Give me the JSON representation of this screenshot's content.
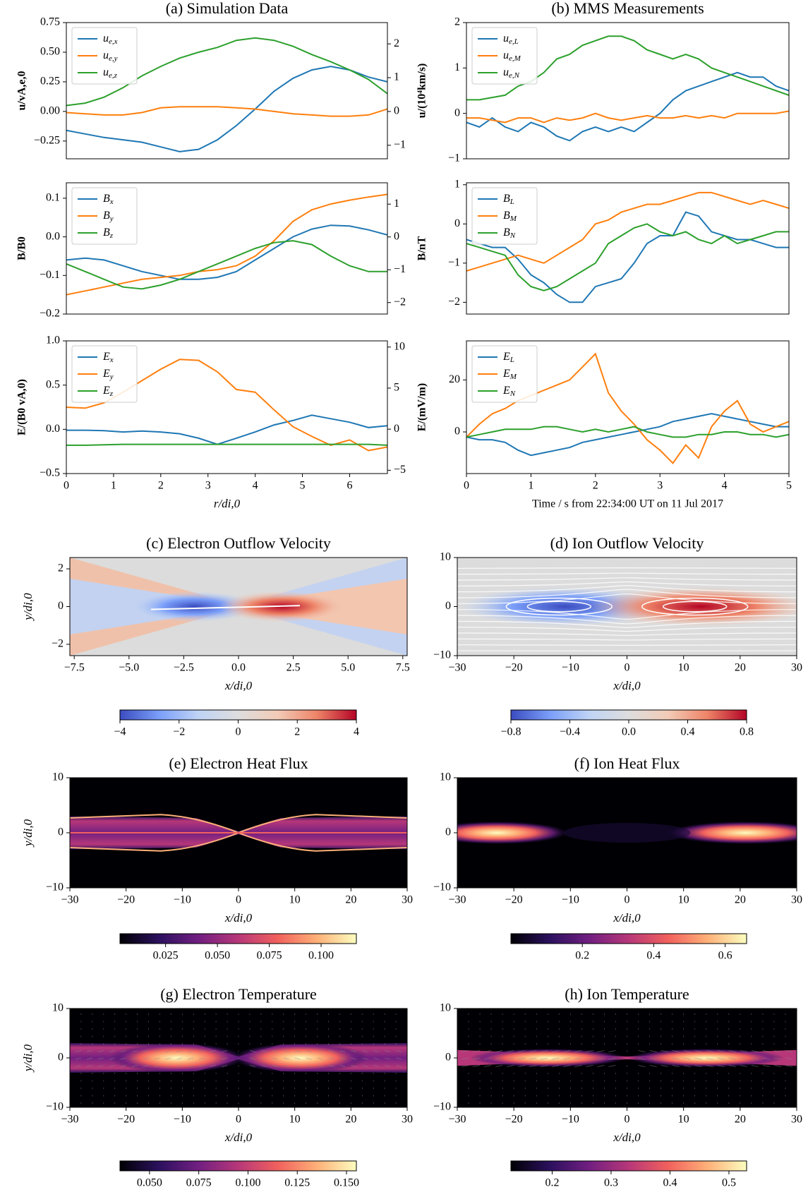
{
  "chart_data": [
    {
      "type": "line",
      "title": "(a) Simulation Data",
      "ylabel": "u/vA,e,0",
      "legend": "upper left",
      "x": [
        0,
        0.4,
        0.8,
        1.2,
        1.6,
        2,
        2.4,
        2.8,
        3.2,
        3.6,
        4,
        4.4,
        4.8,
        5.2,
        5.6,
        6,
        6.4,
        6.8
      ],
      "xlim": [
        0,
        6.8
      ],
      "ylim": [
        -0.4,
        0.75
      ],
      "yticks": [
        {
          "value": -0.25,
          "label": "−0.25"
        },
        {
          "value": 0,
          "label": "0.00"
        },
        0.25,
        {
          "value": 0.5,
          "label": "0.50"
        },
        0.75
      ],
      "y2lim": [
        -1.4,
        2.63
      ],
      "y2ticks": [
        {
          "value": -1,
          "label": "−1"
        },
        0,
        1,
        2
      ],
      "series": [
        {
          "name": "ue,x",
          "color": "#1f77b4",
          "values": [
            -0.16,
            -0.19,
            -0.22,
            -0.24,
            -0.26,
            -0.3,
            -0.34,
            -0.32,
            -0.24,
            -0.12,
            0.02,
            0.17,
            0.28,
            0.35,
            0.38,
            0.35,
            0.29,
            0.25
          ]
        },
        {
          "name": "ue,y",
          "color": "#ff7f0e",
          "values": [
            -0.01,
            -0.02,
            -0.03,
            -0.03,
            -0.01,
            0.03,
            0.04,
            0.04,
            0.04,
            0.03,
            0.02,
            0.0,
            -0.02,
            -0.03,
            -0.04,
            -0.04,
            -0.03,
            0.02
          ]
        },
        {
          "name": "ue,z",
          "color": "#2ca02c",
          "values": [
            0.05,
            0.07,
            0.12,
            0.2,
            0.3,
            0.38,
            0.45,
            0.5,
            0.54,
            0.6,
            0.62,
            0.6,
            0.55,
            0.48,
            0.42,
            0.35,
            0.27,
            0.15
          ]
        }
      ]
    },
    {
      "type": "line",
      "ylabel": "B/B0",
      "legend": "upper left",
      "x": [
        0,
        0.4,
        0.8,
        1.2,
        1.6,
        2,
        2.4,
        2.8,
        3.2,
        3.6,
        4,
        4.4,
        4.8,
        5.2,
        5.6,
        6,
        6.4,
        6.8
      ],
      "xlim": [
        0,
        6.8
      ],
      "ylim": [
        -0.2,
        0.14
      ],
      "yticks": [
        {
          "value": -0.2,
          "label": "−0.2"
        },
        {
          "value": -0.1,
          "label": "−0.1"
        },
        {
          "value": 0,
          "label": "0.0"
        },
        0.1
      ],
      "y2lim": [
        -2.35,
        1.65
      ],
      "y2ticks": [
        {
          "value": -2,
          "label": "−2"
        },
        {
          "value": -1,
          "label": "−1"
        },
        0,
        1
      ],
      "series": [
        {
          "name": "Bx",
          "color": "#1f77b4",
          "values": [
            -0.06,
            -0.055,
            -0.06,
            -0.075,
            -0.09,
            -0.1,
            -0.11,
            -0.11,
            -0.105,
            -0.09,
            -0.06,
            -0.03,
            0.0,
            0.02,
            0.03,
            0.028,
            0.018,
            0.005
          ]
        },
        {
          "name": "By",
          "color": "#ff7f0e",
          "values": [
            -0.15,
            -0.14,
            -0.13,
            -0.12,
            -0.11,
            -0.105,
            -0.1,
            -0.09,
            -0.085,
            -0.075,
            -0.05,
            -0.01,
            0.04,
            0.07,
            0.085,
            0.095,
            0.103,
            0.11
          ]
        },
        {
          "name": "Bz",
          "color": "#2ca02c",
          "values": [
            -0.07,
            -0.09,
            -0.11,
            -0.13,
            -0.135,
            -0.125,
            -0.11,
            -0.09,
            -0.07,
            -0.05,
            -0.03,
            -0.015,
            -0.01,
            -0.02,
            -0.05,
            -0.075,
            -0.09,
            -0.09
          ]
        }
      ]
    },
    {
      "type": "line",
      "ylabel": "E/(B0 vA,0)",
      "xlabel": "r/di,0",
      "legend": "upper left",
      "x": [
        0,
        0.4,
        0.8,
        1.2,
        1.6,
        2,
        2.4,
        2.8,
        3.2,
        3.6,
        4,
        4.4,
        4.8,
        5.2,
        5.6,
        6,
        6.4,
        6.8
      ],
      "xlim": [
        0,
        6.8
      ],
      "xticks": [
        0,
        1,
        2,
        3,
        4,
        5,
        6
      ],
      "ylim": [
        -0.5,
        1.0
      ],
      "yticks": [
        {
          "value": -0.5,
          "label": "−0.5"
        },
        {
          "value": 0,
          "label": "0.0"
        },
        0.5,
        {
          "value": 1,
          "label": "1.0"
        }
      ],
      "y2lim": [
        -5.4,
        10.75
      ],
      "y2ticks": [
        {
          "value": -5,
          "label": "−5"
        },
        0,
        5,
        10
      ],
      "series": [
        {
          "name": "Ex",
          "color": "#1f77b4",
          "values": [
            -0.01,
            -0.01,
            -0.015,
            -0.03,
            -0.02,
            -0.03,
            -0.05,
            -0.1,
            -0.17,
            -0.1,
            -0.03,
            0.05,
            0.1,
            0.16,
            0.12,
            0.08,
            0.02,
            0.04
          ]
        },
        {
          "name": "Ey",
          "color": "#ff7f0e",
          "values": [
            0.25,
            0.24,
            0.3,
            0.42,
            0.55,
            0.68,
            0.79,
            0.78,
            0.65,
            0.45,
            0.42,
            0.22,
            0.03,
            -0.08,
            -0.18,
            -0.12,
            -0.24,
            -0.2
          ]
        },
        {
          "name": "Ez",
          "color": "#2ca02c",
          "values": [
            -0.18,
            -0.18,
            -0.175,
            -0.17,
            -0.17,
            -0.17,
            -0.17,
            -0.17,
            -0.17,
            -0.17,
            -0.17,
            -0.17,
            -0.17,
            -0.17,
            -0.17,
            -0.17,
            -0.17,
            -0.18
          ]
        }
      ]
    },
    {
      "type": "line",
      "title": "(b) MMS Measurements",
      "ylabel": "u/(10⁴km/s)",
      "legend": "upper left",
      "x": [
        0,
        0.2,
        0.4,
        0.6,
        0.8,
        1,
        1.2,
        1.4,
        1.6,
        1.8,
        2,
        2.2,
        2.4,
        2.6,
        2.8,
        3,
        3.2,
        3.4,
        3.6,
        3.8,
        4,
        4.2,
        4.4,
        4.6,
        4.8,
        5
      ],
      "xlim": [
        0,
        5
      ],
      "ylim": [
        -1,
        2
      ],
      "yticks": [
        {
          "value": -1,
          "label": "−1"
        },
        0,
        1,
        2
      ],
      "series": [
        {
          "name": "ue,L",
          "color": "#1f77b4",
          "values": [
            -0.2,
            -0.3,
            -0.1,
            -0.3,
            -0.4,
            -0.2,
            -0.3,
            -0.5,
            -0.6,
            -0.4,
            -0.3,
            -0.4,
            -0.3,
            -0.4,
            -0.2,
            0.0,
            0.3,
            0.5,
            0.6,
            0.7,
            0.8,
            0.9,
            0.8,
            0.8,
            0.6,
            0.5
          ]
        },
        {
          "name": "ue,M",
          "color": "#ff7f0e",
          "values": [
            -0.1,
            -0.1,
            -0.15,
            -0.2,
            -0.1,
            -0.1,
            -0.2,
            -0.1,
            -0.15,
            -0.1,
            0.0,
            -0.1,
            -0.15,
            -0.1,
            -0.05,
            -0.1,
            -0.1,
            -0.05,
            -0.1,
            -0.05,
            -0.1,
            0.0,
            0.0,
            0.0,
            0.0,
            0.05
          ]
        },
        {
          "name": "ue,N",
          "color": "#2ca02c",
          "values": [
            0.3,
            0.3,
            0.35,
            0.4,
            0.6,
            0.7,
            0.9,
            1.2,
            1.3,
            1.5,
            1.6,
            1.7,
            1.7,
            1.6,
            1.4,
            1.3,
            1.2,
            1.3,
            1.2,
            1.0,
            0.9,
            0.8,
            0.7,
            0.6,
            0.5,
            0.4
          ]
        }
      ]
    },
    {
      "type": "line",
      "ylabel": "B/nT",
      "legend": "upper left",
      "x": [
        0,
        0.2,
        0.4,
        0.6,
        0.8,
        1,
        1.2,
        1.4,
        1.6,
        1.8,
        2,
        2.2,
        2.4,
        2.6,
        2.8,
        3,
        3.2,
        3.4,
        3.6,
        3.8,
        4,
        4.2,
        4.4,
        4.6,
        4.8,
        5
      ],
      "xlim": [
        0,
        5
      ],
      "ylim": [
        -2.3,
        1.05
      ],
      "yticks": [
        {
          "value": -2,
          "label": "−2"
        },
        {
          "value": -1,
          "label": "−1"
        },
        0,
        1
      ],
      "series": [
        {
          "name": "BL",
          "color": "#1f77b4",
          "values": [
            -0.4,
            -0.5,
            -0.6,
            -0.6,
            -0.9,
            -1.3,
            -1.5,
            -1.8,
            -2.0,
            -2.0,
            -1.6,
            -1.5,
            -1.4,
            -1.0,
            -0.5,
            -0.3,
            -0.3,
            0.3,
            0.2,
            -0.2,
            -0.3,
            -0.4,
            -0.4,
            -0.5,
            -0.6,
            -0.6
          ]
        },
        {
          "name": "BM",
          "color": "#ff7f0e",
          "values": [
            -1.2,
            -1.1,
            -1.0,
            -0.9,
            -0.8,
            -0.9,
            -1.0,
            -0.8,
            -0.6,
            -0.4,
            0.0,
            0.1,
            0.3,
            0.4,
            0.5,
            0.5,
            0.6,
            0.7,
            0.8,
            0.8,
            0.7,
            0.6,
            0.5,
            0.6,
            0.5,
            0.4
          ]
        },
        {
          "name": "BN",
          "color": "#2ca02c",
          "values": [
            -0.5,
            -0.6,
            -0.7,
            -0.8,
            -1.3,
            -1.6,
            -1.7,
            -1.6,
            -1.4,
            -1.2,
            -1.0,
            -0.5,
            -0.3,
            -0.1,
            0.0,
            -0.2,
            -0.3,
            -0.2,
            -0.4,
            -0.5,
            -0.3,
            -0.5,
            -0.4,
            -0.3,
            -0.2,
            -0.2
          ]
        }
      ]
    },
    {
      "type": "line",
      "ylabel": "E/(mV/m)",
      "xlabel": "Time / s from 22:34:00 UT on 11 Jul 2017",
      "legend": "upper left",
      "x": [
        0,
        0.2,
        0.4,
        0.6,
        0.8,
        1,
        1.2,
        1.4,
        1.6,
        1.8,
        2,
        2.2,
        2.4,
        2.6,
        2.8,
        3,
        3.2,
        3.4,
        3.6,
        3.8,
        4,
        4.2,
        4.4,
        4.6,
        4.8,
        5
      ],
      "xlim": [
        0,
        5
      ],
      "xticks": [
        0,
        1,
        2,
        3,
        4,
        5
      ],
      "ylim": [
        -16,
        35
      ],
      "yticks": [
        0,
        20
      ],
      "series": [
        {
          "name": "EL",
          "color": "#1f77b4",
          "values": [
            -2,
            -3,
            -3,
            -4,
            -7,
            -9,
            -8,
            -7,
            -6,
            -4,
            -3,
            -2,
            -1,
            0,
            1,
            2,
            4,
            5,
            6,
            7,
            6,
            5,
            4,
            3,
            2,
            2
          ]
        },
        {
          "name": "EM",
          "color": "#ff7f0e",
          "values": [
            -2,
            3,
            7,
            9,
            12,
            14,
            16,
            18,
            20,
            25,
            30,
            15,
            8,
            3,
            -3,
            -7,
            -12,
            -5,
            -10,
            2,
            8,
            12,
            3,
            0,
            2,
            4
          ]
        },
        {
          "name": "EN",
          "color": "#2ca02c",
          "values": [
            -2,
            -1,
            0,
            1,
            1,
            1,
            2,
            2,
            1,
            0,
            1,
            0,
            1,
            2,
            0,
            -1,
            -2,
            -2,
            -1,
            -1,
            0,
            0,
            -1,
            -1,
            -2,
            -1
          ]
        }
      ]
    },
    {
      "type": "heatmap",
      "title": "(c) Electron Outflow Velocity",
      "xlabel": "x/di,0",
      "ylabel": "y/di,0",
      "colormap": "coolwarm",
      "xlim": [
        -7.7,
        7.7
      ],
      "ylim": [
        -2.6,
        2.6
      ],
      "xticks": [
        {
          "value": -7.5,
          "label": "−7.5"
        },
        {
          "value": -5,
          "label": "−5.0"
        },
        {
          "value": -2.5,
          "label": "−2.5"
        },
        {
          "value": 0,
          "label": "0.0"
        },
        2.5,
        {
          "value": 5,
          "label": "5.0"
        },
        7.5
      ],
      "yticks": [
        {
          "value": -2,
          "label": "−2"
        },
        0,
        2
      ],
      "clim": [
        -4,
        4
      ],
      "cticks": [
        {
          "value": -4,
          "label": "−4"
        },
        {
          "value": -2,
          "label": "−2"
        },
        0,
        2,
        4
      ]
    },
    {
      "type": "heatmap",
      "title": "(d) Ion Outflow Velocity",
      "xlabel": "x/di,0",
      "colormap": "coolwarm",
      "xlim": [
        -30,
        30
      ],
      "ylim": [
        -10,
        10
      ],
      "xticks": [
        {
          "value": -30,
          "label": "−30"
        },
        {
          "value": -20,
          "label": "−20"
        },
        {
          "value": -10,
          "label": "−10"
        },
        0,
        10,
        20,
        30
      ],
      "yticks": [
        {
          "value": -10,
          "label": "−10"
        },
        0,
        10
      ],
      "clim": [
        -0.8,
        0.8
      ],
      "cticks": [
        {
          "value": -0.8,
          "label": "−0.8"
        },
        {
          "value": -0.4,
          "label": "−0.4"
        },
        {
          "value": 0,
          "label": "0.0"
        },
        0.4,
        0.8
      ]
    },
    {
      "type": "heatmap",
      "title": "(e) Electron Heat Flux",
      "xlabel": "x/di,0",
      "ylabel": "y/di,0",
      "colormap": "magma",
      "xlim": [
        -30,
        30
      ],
      "ylim": [
        -10,
        10
      ],
      "xticks": [
        {
          "value": -30,
          "label": "−30"
        },
        {
          "value": -20,
          "label": "−20"
        },
        {
          "value": -10,
          "label": "−10"
        },
        0,
        10,
        20,
        30
      ],
      "yticks": [
        {
          "value": -10,
          "label": "−10"
        },
        0,
        10
      ],
      "clim": [
        0.003,
        0.117
      ],
      "cticks": [
        0.025,
        {
          "value": 0.05,
          "label": "0.050"
        },
        0.075,
        {
          "value": 0.1,
          "label": "0.100"
        }
      ]
    },
    {
      "type": "heatmap",
      "title": "(f) Ion Heat Flux",
      "xlabel": "x/di,0",
      "colormap": "magma",
      "xlim": [
        -30,
        30
      ],
      "ylim": [
        -10,
        10
      ],
      "xticks": [
        {
          "value": -30,
          "label": "−30"
        },
        {
          "value": -20,
          "label": "−20"
        },
        {
          "value": -10,
          "label": "−10"
        },
        0,
        10,
        20,
        30
      ],
      "yticks": [
        {
          "value": -10,
          "label": "−10"
        },
        0,
        10
      ],
      "clim": [
        0.0,
        0.66
      ],
      "cticks": [
        0.2,
        0.4,
        0.6
      ]
    },
    {
      "type": "heatmap",
      "title": "(g) Electron Temperature",
      "xlabel": "x/di,0",
      "ylabel": "y/di,0",
      "colormap": "magma",
      "xlim": [
        -30,
        30
      ],
      "ylim": [
        -10,
        10
      ],
      "xticks": [
        {
          "value": -30,
          "label": "−30"
        },
        {
          "value": -20,
          "label": "−20"
        },
        {
          "value": -10,
          "label": "−10"
        },
        0,
        10,
        20,
        30
      ],
      "yticks": [
        {
          "value": -10,
          "label": "−10"
        },
        0,
        10
      ],
      "clim": [
        0.035,
        0.155
      ],
      "cticks": [
        {
          "value": 0.05,
          "label": "0.050"
        },
        0.075,
        {
          "value": 0.1,
          "label": "0.100"
        },
        0.125,
        {
          "value": 0.15,
          "label": "0.150"
        }
      ]
    },
    {
      "type": "heatmap",
      "title": "(h) Ion Temperature",
      "xlabel": "x/di,0",
      "colormap": "magma",
      "xlim": [
        -30,
        30
      ],
      "ylim": [
        -10,
        10
      ],
      "xticks": [
        {
          "value": -30,
          "label": "−30"
        },
        {
          "value": -20,
          "label": "−20"
        },
        {
          "value": -10,
          "label": "−10"
        },
        0,
        10,
        20,
        30
      ],
      "yticks": [
        {
          "value": -10,
          "label": "−10"
        },
        0,
        10
      ],
      "clim": [
        0.13,
        0.53
      ],
      "cticks": [
        0.2,
        0.3,
        0.4,
        0.5
      ]
    }
  ]
}
